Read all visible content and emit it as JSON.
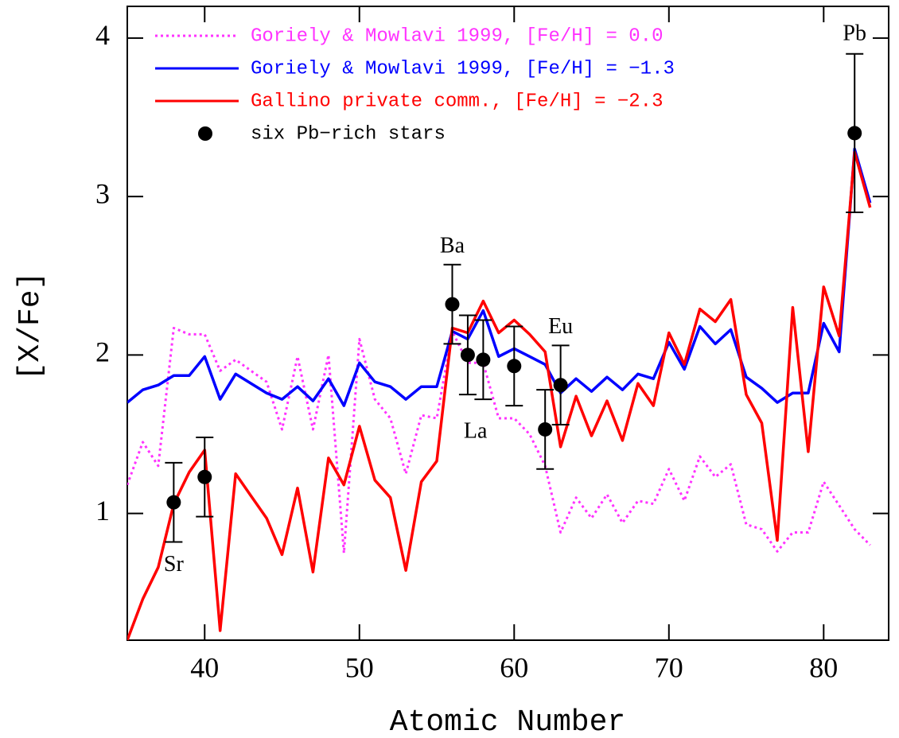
{
  "chart_data": {
    "type": "line",
    "x_label": "Atomic Number",
    "y_label": "[X/Fe]",
    "x": [
      35,
      36,
      37,
      38,
      39,
      40,
      41,
      42,
      43,
      44,
      45,
      46,
      47,
      48,
      49,
      50,
      51,
      52,
      53,
      54,
      55,
      56,
      57,
      58,
      59,
      60,
      61,
      62,
      63,
      64,
      65,
      66,
      67,
      68,
      69,
      70,
      71,
      72,
      73,
      74,
      75,
      76,
      77,
      78,
      79,
      80,
      81,
      82,
      83
    ],
    "series": [
      {
        "name": "Goriely & Mowlavi 1999, [Fe/H] = 0.0",
        "color": "#ff33ff",
        "style": "dotted",
        "values": [
          1.18,
          1.45,
          1.3,
          2.17,
          2.13,
          2.13,
          1.9,
          1.97,
          1.9,
          1.83,
          1.53,
          1.99,
          1.53,
          2.0,
          0.75,
          2.1,
          1.72,
          1.6,
          1.25,
          1.62,
          1.6,
          2.15,
          1.95,
          1.95,
          1.6,
          1.6,
          1.5,
          1.3,
          0.88,
          1.1,
          0.97,
          1.12,
          0.94,
          1.08,
          1.06,
          1.28,
          1.08,
          1.36,
          1.23,
          1.31,
          0.93,
          0.9,
          0.76,
          0.88,
          0.88,
          1.2,
          1.05,
          0.9,
          0.8
        ]
      },
      {
        "name": "Goriely & Mowlavi 1999, [Fe/H] = −1.3",
        "color": "#0000ff",
        "style": "solid",
        "values": [
          1.7,
          1.78,
          1.81,
          1.87,
          1.87,
          1.99,
          1.72,
          1.88,
          1.82,
          1.76,
          1.72,
          1.8,
          1.71,
          1.85,
          1.68,
          1.95,
          1.83,
          1.8,
          1.72,
          1.8,
          1.8,
          2.15,
          2.1,
          2.28,
          1.99,
          2.04,
          1.99,
          1.94,
          1.76,
          1.85,
          1.77,
          1.86,
          1.78,
          1.88,
          1.85,
          2.08,
          1.91,
          2.18,
          2.07,
          2.16,
          1.86,
          1.79,
          1.7,
          1.76,
          1.76,
          2.2,
          2.02,
          3.3,
          2.96
        ]
      },
      {
        "name": "Gallino private comm., [Fe/H] = −2.3",
        "color": "#ff0000",
        "style": "solid",
        "values": [
          0.2,
          0.46,
          0.66,
          1.06,
          1.26,
          1.4,
          0.26,
          1.25,
          1.11,
          0.97,
          0.74,
          1.16,
          0.63,
          1.35,
          1.18,
          1.55,
          1.21,
          1.1,
          0.64,
          1.2,
          1.33,
          2.17,
          2.14,
          2.34,
          2.14,
          2.22,
          2.13,
          2.02,
          1.42,
          1.74,
          1.49,
          1.71,
          1.46,
          1.82,
          1.68,
          2.14,
          1.94,
          2.29,
          2.21,
          2.35,
          1.75,
          1.57,
          0.83,
          2.3,
          1.39,
          2.43,
          2.12,
          3.28,
          2.93
        ]
      },
      {
        "name": "six Pb−rich stars",
        "color": "#000000",
        "style": "points",
        "x": [
          38,
          40,
          56,
          57,
          58,
          60,
          62,
          63,
          82
        ],
        "values": [
          1.07,
          1.23,
          2.32,
          2.0,
          1.97,
          1.93,
          1.53,
          1.81,
          3.4
        ],
        "errors": [
          0.25,
          0.25,
          0.25,
          0.25,
          0.25,
          0.25,
          0.25,
          0.25,
          0.5
        ]
      }
    ],
    "annotations": [
      "Sr",
      "Ba",
      "La",
      "Eu",
      "Pb"
    ],
    "xlim": [
      35,
      84.2
    ],
    "ylim": [
      0.2,
      4.2
    ],
    "xticks": [
      40,
      50,
      60,
      70,
      80
    ],
    "yticks": [
      1,
      2,
      3,
      4
    ],
    "legend": "upper left"
  }
}
